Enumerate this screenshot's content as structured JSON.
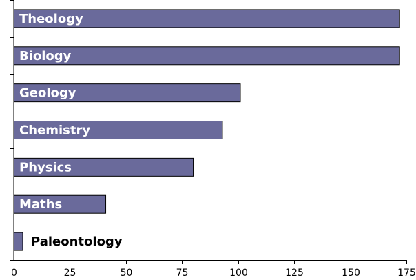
{
  "chart_data": {
    "type": "bar",
    "orientation": "horizontal",
    "categories": [
      "Theology",
      "Biology",
      "Geology",
      "Chemistry",
      "Physics",
      "Maths",
      "Paleontology"
    ],
    "values": [
      172,
      172,
      101,
      93,
      80,
      41,
      4
    ],
    "xlim": [
      0,
      175
    ],
    "xticks": [
      0,
      25,
      50,
      75,
      100,
      125,
      150,
      175
    ],
    "bar_color": "#6a6a9b",
    "grid": false,
    "legend": "none",
    "title": "",
    "xlabel": "",
    "ylabel": ""
  }
}
